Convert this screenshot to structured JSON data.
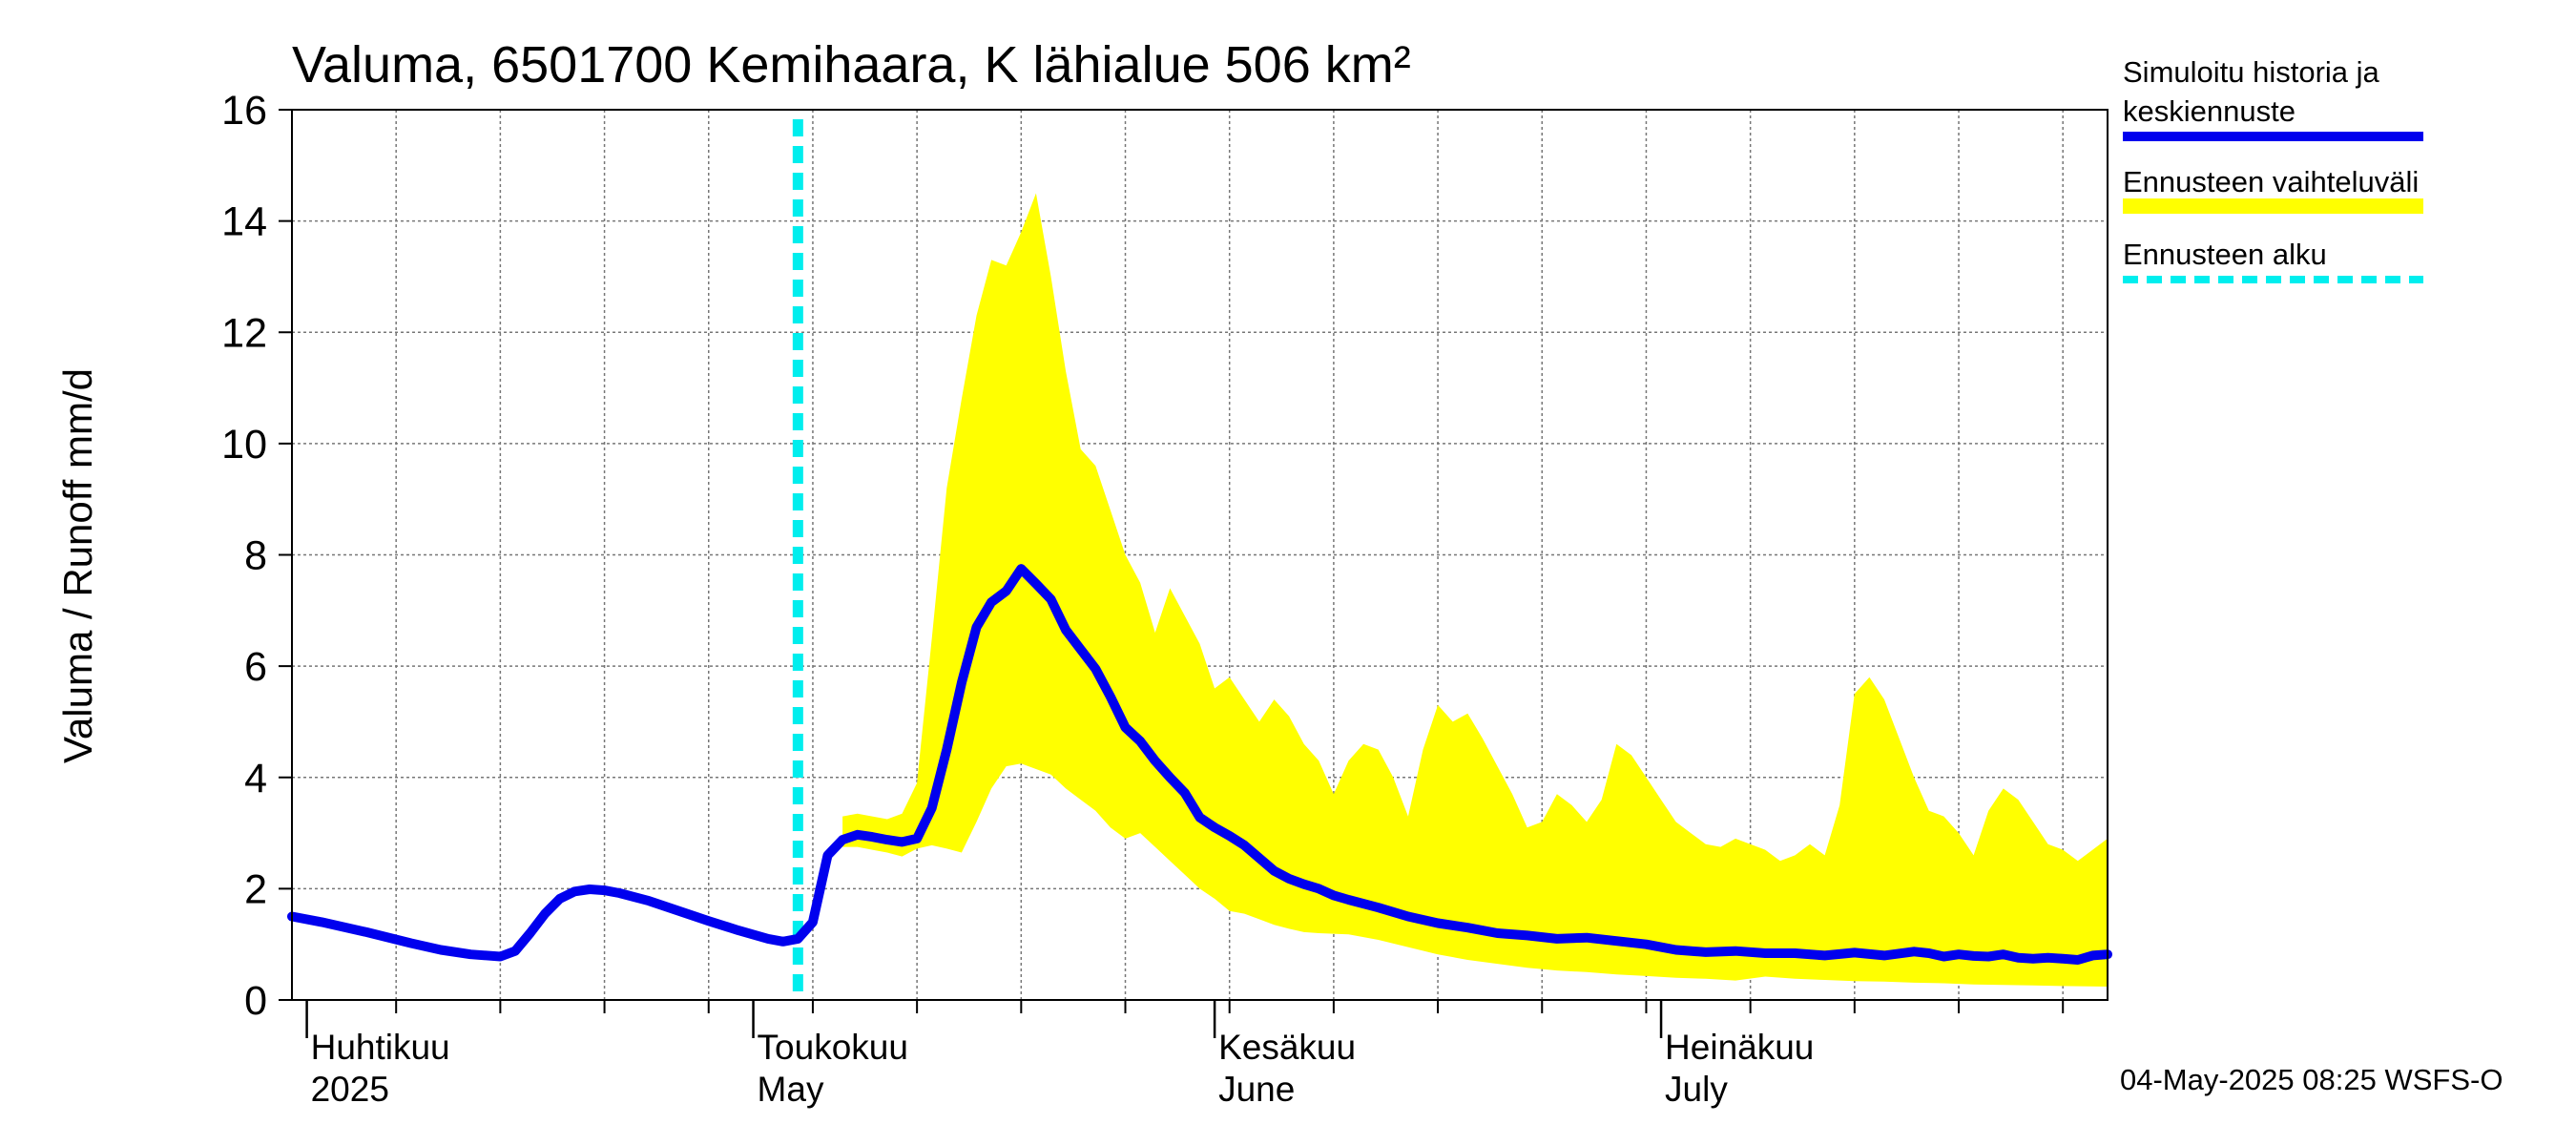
{
  "chart_data": {
    "type": "area",
    "title": "Valuma, 6501700 Kemihaara, K lähialue 506 km²",
    "ylabel": "Valuma / Runoff     mm/d",
    "ylim": [
      0,
      16
    ],
    "yticks": [
      "0",
      "2",
      "4",
      "6",
      "8",
      "10",
      "12",
      "14",
      "16"
    ],
    "xlim": [
      "2025-03-31",
      "2025-07-31"
    ],
    "grid": true,
    "legend_position": "right",
    "months": [
      {
        "date": "2025-04-01",
        "fi": "Huhtikuu",
        "en": "2025"
      },
      {
        "date": "2025-05-01",
        "fi": "Toukokuu",
        "en": "May"
      },
      {
        "date": "2025-06-01",
        "fi": "Kesäkuu",
        "en": "June"
      },
      {
        "date": "2025-07-01",
        "fi": "Heinäkuu",
        "en": "July"
      }
    ],
    "forecast_start": "2025-05-04",
    "series": [
      {
        "name": "Simuloitu historia ja keskiennuste",
        "color": "#0000ee",
        "style": "solid",
        "points": [
          [
            "2025-03-31",
            1.5
          ],
          [
            "2025-04-02",
            1.4
          ],
          [
            "2025-04-05",
            1.22
          ],
          [
            "2025-04-08",
            1.02
          ],
          [
            "2025-04-10",
            0.9
          ],
          [
            "2025-04-12",
            0.82
          ],
          [
            "2025-04-14",
            0.78
          ],
          [
            "2025-04-15",
            0.88
          ],
          [
            "2025-04-16",
            1.2
          ],
          [
            "2025-04-17",
            1.55
          ],
          [
            "2025-04-18",
            1.82
          ],
          [
            "2025-04-19",
            1.95
          ],
          [
            "2025-04-20",
            1.99
          ],
          [
            "2025-04-21",
            1.97
          ],
          [
            "2025-04-22",
            1.92
          ],
          [
            "2025-04-24",
            1.78
          ],
          [
            "2025-04-26",
            1.6
          ],
          [
            "2025-04-28",
            1.42
          ],
          [
            "2025-04-30",
            1.25
          ],
          [
            "2025-05-02",
            1.1
          ],
          [
            "2025-05-03",
            1.05
          ],
          [
            "2025-05-04",
            1.1
          ],
          [
            "2025-05-05",
            1.4
          ],
          [
            "2025-05-06",
            2.6
          ],
          [
            "2025-05-07",
            2.88
          ],
          [
            "2025-05-08",
            2.97
          ],
          [
            "2025-05-09",
            2.93
          ],
          [
            "2025-05-10",
            2.88
          ],
          [
            "2025-05-11",
            2.84
          ],
          [
            "2025-05-12",
            2.9
          ],
          [
            "2025-05-13",
            3.45
          ],
          [
            "2025-05-14",
            4.5
          ],
          [
            "2025-05-15",
            5.7
          ],
          [
            "2025-05-16",
            6.7
          ],
          [
            "2025-05-17",
            7.15
          ],
          [
            "2025-05-18",
            7.35
          ],
          [
            "2025-05-19",
            7.75
          ],
          [
            "2025-05-20",
            7.48
          ],
          [
            "2025-05-21",
            7.2
          ],
          [
            "2025-05-22",
            6.65
          ],
          [
            "2025-05-23",
            6.3
          ],
          [
            "2025-05-24",
            5.95
          ],
          [
            "2025-05-25",
            5.45
          ],
          [
            "2025-05-26",
            4.9
          ],
          [
            "2025-05-27",
            4.65
          ],
          [
            "2025-05-28",
            4.3
          ],
          [
            "2025-05-29",
            4.0
          ],
          [
            "2025-05-30",
            3.72
          ],
          [
            "2025-05-31",
            3.28
          ],
          [
            "2025-06-01",
            3.1
          ],
          [
            "2025-06-02",
            2.95
          ],
          [
            "2025-06-03",
            2.78
          ],
          [
            "2025-06-04",
            2.55
          ],
          [
            "2025-06-05",
            2.32
          ],
          [
            "2025-06-06",
            2.18
          ],
          [
            "2025-06-07",
            2.08
          ],
          [
            "2025-06-08",
            2.0
          ],
          [
            "2025-06-09",
            1.88
          ],
          [
            "2025-06-10",
            1.8
          ],
          [
            "2025-06-12",
            1.66
          ],
          [
            "2025-06-14",
            1.5
          ],
          [
            "2025-06-16",
            1.38
          ],
          [
            "2025-06-18",
            1.3
          ],
          [
            "2025-06-20",
            1.2
          ],
          [
            "2025-06-22",
            1.16
          ],
          [
            "2025-06-24",
            1.1
          ],
          [
            "2025-06-26",
            1.12
          ],
          [
            "2025-06-28",
            1.06
          ],
          [
            "2025-06-30",
            1.0
          ],
          [
            "2025-07-02",
            0.9
          ],
          [
            "2025-07-04",
            0.86
          ],
          [
            "2025-07-06",
            0.88
          ],
          [
            "2025-07-08",
            0.84
          ],
          [
            "2025-07-10",
            0.84
          ],
          [
            "2025-07-12",
            0.8
          ],
          [
            "2025-07-14",
            0.85
          ],
          [
            "2025-07-16",
            0.8
          ],
          [
            "2025-07-18",
            0.87
          ],
          [
            "2025-07-19",
            0.84
          ],
          [
            "2025-07-20",
            0.78
          ],
          [
            "2025-07-21",
            0.82
          ],
          [
            "2025-07-22",
            0.79
          ],
          [
            "2025-07-23",
            0.78
          ],
          [
            "2025-07-24",
            0.82
          ],
          [
            "2025-07-25",
            0.76
          ],
          [
            "2025-07-26",
            0.74
          ],
          [
            "2025-07-27",
            0.76
          ],
          [
            "2025-07-28",
            0.74
          ],
          [
            "2025-07-29",
            0.72
          ],
          [
            "2025-07-30",
            0.8
          ],
          [
            "2025-07-31",
            0.82
          ]
        ]
      },
      {
        "name": "Ennusteen vaihteluväli",
        "color": "#ffff00",
        "style": "band",
        "upper": [
          [
            "2025-05-07",
            3.3
          ],
          [
            "2025-05-08",
            3.35
          ],
          [
            "2025-05-09",
            3.3
          ],
          [
            "2025-05-10",
            3.25
          ],
          [
            "2025-05-11",
            3.35
          ],
          [
            "2025-05-12",
            3.9
          ],
          [
            "2025-05-13",
            6.5
          ],
          [
            "2025-05-14",
            9.2
          ],
          [
            "2025-05-15",
            10.8
          ],
          [
            "2025-05-16",
            12.3
          ],
          [
            "2025-05-17",
            13.3
          ],
          [
            "2025-05-18",
            13.2
          ],
          [
            "2025-05-19",
            13.8
          ],
          [
            "2025-05-20",
            14.5
          ],
          [
            "2025-05-21",
            13.0
          ],
          [
            "2025-05-22",
            11.3
          ],
          [
            "2025-05-23",
            9.9
          ],
          [
            "2025-05-24",
            9.6
          ],
          [
            "2025-05-25",
            8.8
          ],
          [
            "2025-05-26",
            8.0
          ],
          [
            "2025-05-27",
            7.5
          ],
          [
            "2025-05-28",
            6.6
          ],
          [
            "2025-05-29",
            7.4
          ],
          [
            "2025-05-30",
            6.9
          ],
          [
            "2025-05-31",
            6.4
          ],
          [
            "2025-06-01",
            5.6
          ],
          [
            "2025-06-02",
            5.8
          ],
          [
            "2025-06-03",
            5.4
          ],
          [
            "2025-06-04",
            5.0
          ],
          [
            "2025-06-05",
            5.4
          ],
          [
            "2025-06-06",
            5.1
          ],
          [
            "2025-06-07",
            4.6
          ],
          [
            "2025-06-08",
            4.3
          ],
          [
            "2025-06-09",
            3.7
          ],
          [
            "2025-06-10",
            4.3
          ],
          [
            "2025-06-11",
            4.6
          ],
          [
            "2025-06-12",
            4.5
          ],
          [
            "2025-06-13",
            4.0
          ],
          [
            "2025-06-14",
            3.3
          ],
          [
            "2025-06-15",
            4.5
          ],
          [
            "2025-06-16",
            5.3
          ],
          [
            "2025-06-17",
            5.0
          ],
          [
            "2025-06-18",
            5.15
          ],
          [
            "2025-06-19",
            4.7
          ],
          [
            "2025-06-20",
            4.2
          ],
          [
            "2025-06-21",
            3.7
          ],
          [
            "2025-06-22",
            3.1
          ],
          [
            "2025-06-23",
            3.2
          ],
          [
            "2025-06-24",
            3.7
          ],
          [
            "2025-06-25",
            3.5
          ],
          [
            "2025-06-26",
            3.2
          ],
          [
            "2025-06-27",
            3.6
          ],
          [
            "2025-06-28",
            4.6
          ],
          [
            "2025-06-29",
            4.4
          ],
          [
            "2025-06-30",
            4.0
          ],
          [
            "2025-07-01",
            3.6
          ],
          [
            "2025-07-02",
            3.2
          ],
          [
            "2025-07-03",
            3.0
          ],
          [
            "2025-07-04",
            2.8
          ],
          [
            "2025-07-05",
            2.75
          ],
          [
            "2025-07-06",
            2.9
          ],
          [
            "2025-07-07",
            2.8
          ],
          [
            "2025-07-08",
            2.7
          ],
          [
            "2025-07-09",
            2.5
          ],
          [
            "2025-07-10",
            2.6
          ],
          [
            "2025-07-11",
            2.8
          ],
          [
            "2025-07-12",
            2.6
          ],
          [
            "2025-07-13",
            3.5
          ],
          [
            "2025-07-14",
            5.5
          ],
          [
            "2025-07-15",
            5.8
          ],
          [
            "2025-07-16",
            5.4
          ],
          [
            "2025-07-17",
            4.7
          ],
          [
            "2025-07-18",
            4.0
          ],
          [
            "2025-07-19",
            3.4
          ],
          [
            "2025-07-20",
            3.3
          ],
          [
            "2025-07-21",
            3.0
          ],
          [
            "2025-07-22",
            2.6
          ],
          [
            "2025-07-23",
            3.4
          ],
          [
            "2025-07-24",
            3.8
          ],
          [
            "2025-07-25",
            3.6
          ],
          [
            "2025-07-26",
            3.2
          ],
          [
            "2025-07-27",
            2.8
          ],
          [
            "2025-07-28",
            2.7
          ],
          [
            "2025-07-29",
            2.5
          ],
          [
            "2025-07-30",
            2.7
          ],
          [
            "2025-07-31",
            2.9
          ]
        ],
        "lower": [
          [
            "2025-05-07",
            2.75
          ],
          [
            "2025-05-08",
            2.75
          ],
          [
            "2025-05-09",
            2.7
          ],
          [
            "2025-05-10",
            2.65
          ],
          [
            "2025-05-11",
            2.58
          ],
          [
            "2025-05-12",
            2.72
          ],
          [
            "2025-05-13",
            2.78
          ],
          [
            "2025-05-14",
            2.72
          ],
          [
            "2025-05-15",
            2.65
          ],
          [
            "2025-05-16",
            3.2
          ],
          [
            "2025-05-17",
            3.8
          ],
          [
            "2025-05-18",
            4.2
          ],
          [
            "2025-05-19",
            4.25
          ],
          [
            "2025-05-20",
            4.15
          ],
          [
            "2025-05-21",
            4.05
          ],
          [
            "2025-05-22",
            3.8
          ],
          [
            "2025-05-23",
            3.6
          ],
          [
            "2025-05-24",
            3.4
          ],
          [
            "2025-05-25",
            3.1
          ],
          [
            "2025-05-26",
            2.9
          ],
          [
            "2025-05-27",
            3.0
          ],
          [
            "2025-05-28",
            2.75
          ],
          [
            "2025-05-29",
            2.5
          ],
          [
            "2025-05-30",
            2.25
          ],
          [
            "2025-05-31",
            2.0
          ],
          [
            "2025-06-01",
            1.82
          ],
          [
            "2025-06-02",
            1.6
          ],
          [
            "2025-06-03",
            1.55
          ],
          [
            "2025-06-04",
            1.45
          ],
          [
            "2025-06-05",
            1.35
          ],
          [
            "2025-06-06",
            1.28
          ],
          [
            "2025-06-07",
            1.22
          ],
          [
            "2025-06-08",
            1.2
          ],
          [
            "2025-06-10",
            1.18
          ],
          [
            "2025-06-12",
            1.08
          ],
          [
            "2025-06-14",
            0.95
          ],
          [
            "2025-06-16",
            0.82
          ],
          [
            "2025-06-18",
            0.72
          ],
          [
            "2025-06-20",
            0.65
          ],
          [
            "2025-06-22",
            0.58
          ],
          [
            "2025-06-24",
            0.53
          ],
          [
            "2025-06-26",
            0.5
          ],
          [
            "2025-06-28",
            0.46
          ],
          [
            "2025-06-30",
            0.43
          ],
          [
            "2025-07-02",
            0.4
          ],
          [
            "2025-07-04",
            0.38
          ],
          [
            "2025-07-06",
            0.35
          ],
          [
            "2025-07-08",
            0.42
          ],
          [
            "2025-07-10",
            0.38
          ],
          [
            "2025-07-12",
            0.36
          ],
          [
            "2025-07-14",
            0.34
          ],
          [
            "2025-07-16",
            0.33
          ],
          [
            "2025-07-18",
            0.31
          ],
          [
            "2025-07-20",
            0.3
          ],
          [
            "2025-07-22",
            0.28
          ],
          [
            "2025-07-24",
            0.27
          ],
          [
            "2025-07-26",
            0.26
          ],
          [
            "2025-07-28",
            0.25
          ],
          [
            "2025-07-31",
            0.24
          ]
        ]
      },
      {
        "name": "Ennusteen alku",
        "color": "#00eeee",
        "style": "dashed"
      }
    ],
    "footer": "04-May-2025 08:25 WSFS-O"
  }
}
